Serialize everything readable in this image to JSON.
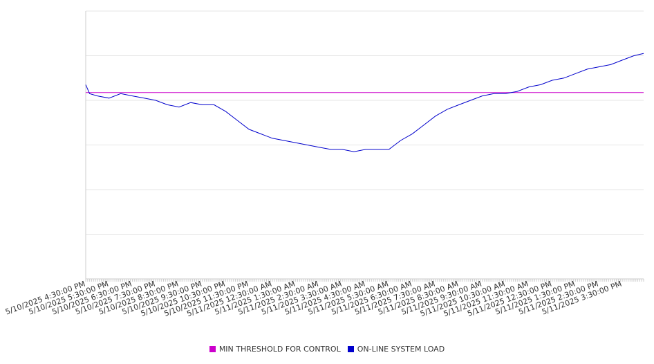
{
  "chart_data": {
    "type": "line",
    "title": "",
    "xlabel": "",
    "ylabel": "",
    "grid": true,
    "legend_position": "bottom-center",
    "x_range": [
      "5/10/2025 4:30:00 PM",
      "5/11/2025 4:25:00 PM"
    ],
    "x_tick_labels": [
      "5/10/2025 4:30:00 PM",
      "5/10/2025 5:30:00 PM",
      "5/10/2025 6:30:00 PM",
      "5/10/2025 7:30:00 PM",
      "5/10/2025 8:30:00 PM",
      "5/10/2025 9:30:00 PM",
      "5/10/2025 10:30:00 PM",
      "5/10/2025 11:30:00 PM",
      "5/11/2025 12:30:00 AM",
      "5/11/2025 1:30:00 AM",
      "5/11/2025 2:30:00 AM",
      "5/11/2025 3:30:00 AM",
      "5/11/2025 4:30:00 AM",
      "5/11/2025 5:30:00 AM",
      "5/11/2025 6:30:00 AM",
      "5/11/2025 7:30:00 AM",
      "5/11/2025 8:30:00 AM",
      "5/11/2025 9:30:00 AM",
      "5/11/2025 10:30:00 AM",
      "5/11/2025 11:30:00 AM",
      "5/11/2025 12:30:00 PM",
      "5/11/2025 1:30:00 PM",
      "5/11/2025 2:30:00 PM",
      "5/11/2025 3:30:00 PM"
    ],
    "y_axis_labels_shown": false,
    "series": [
      {
        "name": "MIN THRESHOLD FOR CONTROL",
        "color": "#cc00cc",
        "x": [
          "5/10/2025 4:30:00 PM",
          "5/11/2025 4:25:00 PM"
        ],
        "y": [
          83.5,
          83.5
        ]
      },
      {
        "name": "ON-LINE SYSTEM LOAD",
        "color": "#0000cc",
        "x": [
          "5/10/2025 4:30:00 PM",
          "5/10/2025 4:40:00 PM",
          "5/10/2025 5:00:00 PM",
          "5/10/2025 5:30:00 PM",
          "5/10/2025 6:00:00 PM",
          "5/10/2025 6:30:00 PM",
          "5/10/2025 7:00:00 PM",
          "5/10/2025 7:30:00 PM",
          "5/10/2025 8:00:00 PM",
          "5/10/2025 8:30:00 PM",
          "5/10/2025 9:00:00 PM",
          "5/10/2025 9:30:00 PM",
          "5/10/2025 10:00:00 PM",
          "5/10/2025 10:30:00 PM",
          "5/10/2025 11:00:00 PM",
          "5/10/2025 11:30:00 PM",
          "5/11/2025 12:00:00 AM",
          "5/11/2025 12:30:00 AM",
          "5/11/2025 1:00:00 AM",
          "5/11/2025 1:30:00 AM",
          "5/11/2025 2:00:00 AM",
          "5/11/2025 2:30:00 AM",
          "5/11/2025 3:00:00 AM",
          "5/11/2025 3:30:00 AM",
          "5/11/2025 4:00:00 AM",
          "5/11/2025 4:30:00 AM",
          "5/11/2025 5:00:00 AM",
          "5/11/2025 5:30:00 AM",
          "5/11/2025 6:00:00 AM",
          "5/11/2025 6:30:00 AM",
          "5/11/2025 7:00:00 AM",
          "5/11/2025 7:30:00 AM",
          "5/11/2025 8:00:00 AM",
          "5/11/2025 8:30:00 AM",
          "5/11/2025 9:00:00 AM",
          "5/11/2025 9:30:00 AM",
          "5/11/2025 10:00:00 AM",
          "5/11/2025 10:30:00 AM",
          "5/11/2025 11:00:00 AM",
          "5/11/2025 11:30:00 AM",
          "5/11/2025 12:00:00 PM",
          "5/11/2025 12:30:00 PM",
          "5/11/2025 1:00:00 PM",
          "5/11/2025 1:30:00 PM",
          "5/11/2025 2:00:00 PM",
          "5/11/2025 2:30:00 PM",
          "5/11/2025 3:00:00 PM",
          "5/11/2025 3:30:00 PM",
          "5/11/2025 4:00:00 PM",
          "5/11/2025 4:25:00 PM"
        ],
        "y": [
          87,
          83,
          82,
          81,
          83,
          82,
          81,
          80,
          78,
          77,
          79,
          78,
          78,
          75,
          71,
          67,
          65,
          63,
          62,
          61,
          60,
          59,
          58,
          58,
          57,
          58,
          58,
          58,
          62,
          65,
          69,
          73,
          76,
          78,
          80,
          82,
          83,
          83,
          84,
          86,
          87,
          89,
          90,
          92,
          94,
          95,
          96,
          98,
          100,
          101
        ]
      }
    ]
  }
}
